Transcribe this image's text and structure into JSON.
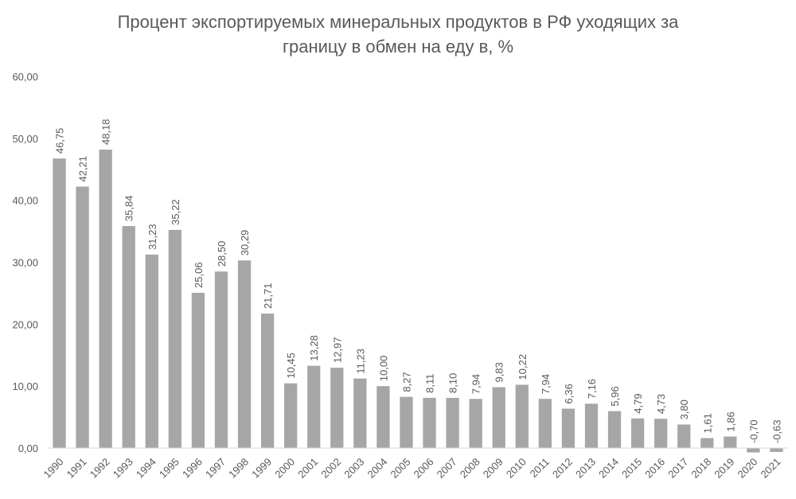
{
  "chart_data": {
    "type": "bar",
    "title_line1": "Процент экспортируемых минеральных продуктов в РФ уходящих за",
    "title_line2": "границу в обмен на еду в, %",
    "categories": [
      "1990",
      "1991",
      "1992",
      "1993",
      "1994",
      "1995",
      "1996",
      "1997",
      "1998",
      "1999",
      "2000",
      "2001",
      "2002",
      "2003",
      "2004",
      "2005",
      "2006",
      "2007",
      "2008",
      "2009",
      "2010",
      "2011",
      "2012",
      "2013",
      "2014",
      "2015",
      "2016",
      "2017",
      "2018",
      "2019",
      "2020",
      "2021"
    ],
    "values": [
      46.75,
      42.21,
      48.18,
      35.84,
      31.23,
      35.22,
      25.06,
      28.5,
      30.29,
      21.71,
      10.45,
      13.28,
      12.97,
      11.23,
      10.0,
      8.27,
      8.11,
      8.1,
      7.94,
      9.83,
      10.22,
      7.94,
      6.36,
      7.16,
      5.96,
      4.79,
      4.73,
      3.8,
      1.61,
      1.86,
      -0.7,
      -0.63
    ],
    "data_labels": [
      "46,75",
      "42,21",
      "48,18",
      "35,84",
      "31,23",
      "35,22",
      "25,06",
      "28,50",
      "30,29",
      "21,71",
      "10,45",
      "13,28",
      "12,97",
      "11,23",
      "10,00",
      "8,27",
      "8,11",
      "8,10",
      "7,94",
      "9,83",
      "10,22",
      "7,94",
      "6,36",
      "7,16",
      "5,96",
      "4,79",
      "4,73",
      "3,80",
      "1,61",
      "1,86",
      "-0,70",
      "-0,63"
    ],
    "y_ticks": [
      "0,00",
      "10,00",
      "20,00",
      "30,00",
      "40,00",
      "50,00",
      "60,00"
    ],
    "y_tick_values": [
      0,
      10,
      20,
      30,
      40,
      50,
      60
    ],
    "ylim": [
      0,
      60
    ],
    "grid": false,
    "legend": "none",
    "bar_color": "#a6a6a6",
    "text_color": "#595959",
    "axis_color": "#d9d9d9"
  }
}
